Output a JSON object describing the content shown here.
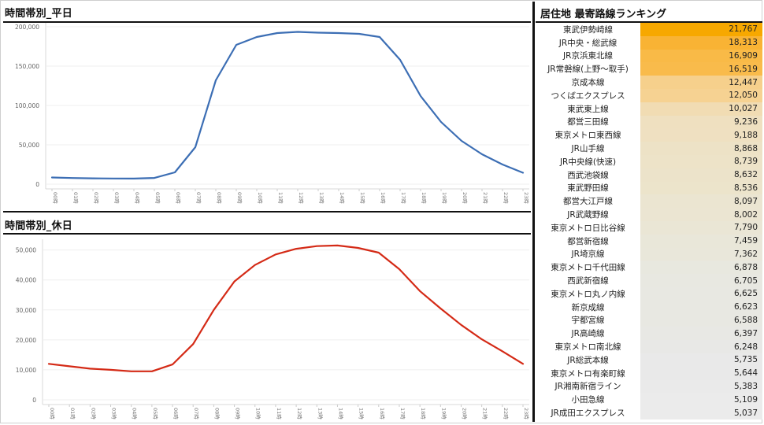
{
  "charts": {
    "weekday": {
      "title": "時間帯別_平日"
    },
    "holiday": {
      "title": "時間帯別_休日"
    }
  },
  "ranking": {
    "title": "居住地 最寄路線ランキング",
    "rows": [
      {
        "name": "東武伊勢崎線",
        "value": "21,767",
        "color": "#f7a800"
      },
      {
        "name": "JR中央・総武線",
        "value": "18,313",
        "color": "#f9b334"
      },
      {
        "name": "JR京浜東北線",
        "value": "16,909",
        "color": "#f9ba47"
      },
      {
        "name": "JR常磐線(上野～取手)",
        "value": "16,519",
        "color": "#f9bb4b"
      },
      {
        "name": "京成本線",
        "value": "12,447",
        "color": "#f6d08c"
      },
      {
        "name": "つくばエクスプレス",
        "value": "12,050",
        "color": "#f6d292"
      },
      {
        "name": "東武東上線",
        "value": "10,027",
        "color": "#f1dcb3"
      },
      {
        "name": "都営三田線",
        "value": "9,236",
        "color": "#efe0c0"
      },
      {
        "name": "東京メトロ東西線",
        "value": "9,188",
        "color": "#efe0c1"
      },
      {
        "name": "JR山手線",
        "value": "8,868",
        "color": "#ede2c6"
      },
      {
        "name": "JR中央線(快速)",
        "value": "8,739",
        "color": "#ede3c8"
      },
      {
        "name": "西武池袋線",
        "value": "8,632",
        "color": "#ece3ca"
      },
      {
        "name": "東武野田線",
        "value": "8,536",
        "color": "#ece4cb"
      },
      {
        "name": "都営大江戸線",
        "value": "8,097",
        "color": "#ebe5d1"
      },
      {
        "name": "JR武蔵野線",
        "value": "8,002",
        "color": "#ebe5d2"
      },
      {
        "name": "東京メトロ日比谷線",
        "value": "7,790",
        "color": "#eae6d5"
      },
      {
        "name": "都営新宿線",
        "value": "7,459",
        "color": "#e9e7d9"
      },
      {
        "name": "JR埼京線",
        "value": "7,362",
        "color": "#e9e7da"
      },
      {
        "name": "東京メトロ千代田線",
        "value": "6,878",
        "color": "#e8e8df"
      },
      {
        "name": "西武新宿線",
        "value": "6,705",
        "color": "#e8e8e1"
      },
      {
        "name": "東京メトロ丸ノ内線",
        "value": "6,625",
        "color": "#e8e8e2"
      },
      {
        "name": "新京成線",
        "value": "6,623",
        "color": "#e8e8e2"
      },
      {
        "name": "宇都宮線",
        "value": "6,588",
        "color": "#e8e8e2"
      },
      {
        "name": "JR高崎線",
        "value": "6,397",
        "color": "#e8e8e4"
      },
      {
        "name": "東京メトロ南北線",
        "value": "6,248",
        "color": "#e8e8e6"
      },
      {
        "name": "JR総武本線",
        "value": "5,735",
        "color": "#e9e9e9"
      },
      {
        "name": "東京メトロ有楽町線",
        "value": "5,644",
        "color": "#e9e9e9"
      },
      {
        "name": "JR湘南新宿ライン",
        "value": "5,383",
        "color": "#eaeaea"
      },
      {
        "name": "小田急線",
        "value": "5,109",
        "color": "#ebebeb"
      },
      {
        "name": "JR成田エクスプレス",
        "value": "5,037",
        "color": "#ebebeb"
      }
    ]
  },
  "chart_data": [
    {
      "type": "line",
      "title": "時間帯別_平日",
      "categories": [
        "00時",
        "01時",
        "02時",
        "03時",
        "04時",
        "05時",
        "06時",
        "07時",
        "08時",
        "09時",
        "10時",
        "11時",
        "12時",
        "13時",
        "14時",
        "15時",
        "16時",
        "17時",
        "18時",
        "19時",
        "20時",
        "21時",
        "22時",
        "23時"
      ],
      "series": [
        {
          "values": [
            8500,
            7800,
            7400,
            7200,
            7100,
            7900,
            15000,
            47000,
            132000,
            177000,
            187000,
            192000,
            193500,
            192500,
            192000,
            191000,
            187000,
            158000,
            112000,
            79000,
            55000,
            38000,
            25000,
            14500
          ],
          "color": "#3c6eb4"
        }
      ],
      "ylim": [
        0,
        200000
      ],
      "yticks": [
        0,
        50000,
        100000,
        150000,
        200000
      ],
      "ytick_labels": [
        "0",
        "50,000",
        "100,000",
        "150,000",
        "200,000"
      ],
      "grid": true
    },
    {
      "type": "line",
      "title": "時間帯別_休日",
      "categories": [
        "00時",
        "01時",
        "02時",
        "03時",
        "04時",
        "05時",
        "06時",
        "07時",
        "08時",
        "09時",
        "10時",
        "11時",
        "12時",
        "13時",
        "14時",
        "15時",
        "16時",
        "17時",
        "18時",
        "19時",
        "20時",
        "21時",
        "22時",
        "23時"
      ],
      "series": [
        {
          "values": [
            12000,
            11200,
            10400,
            10000,
            9500,
            9500,
            11800,
            18600,
            30000,
            39500,
            45000,
            48500,
            50400,
            51300,
            51500,
            50700,
            49100,
            43600,
            36300,
            30500,
            25000,
            20200,
            16200,
            12000
          ],
          "color": "#d42a16"
        }
      ],
      "ylim": [
        0,
        52000
      ],
      "yticks": [
        0,
        10000,
        20000,
        30000,
        40000,
        50000
      ],
      "ytick_labels": [
        "0",
        "10,000",
        "20,000",
        "30,000",
        "40,000",
        "50,000"
      ],
      "grid": true
    }
  ]
}
